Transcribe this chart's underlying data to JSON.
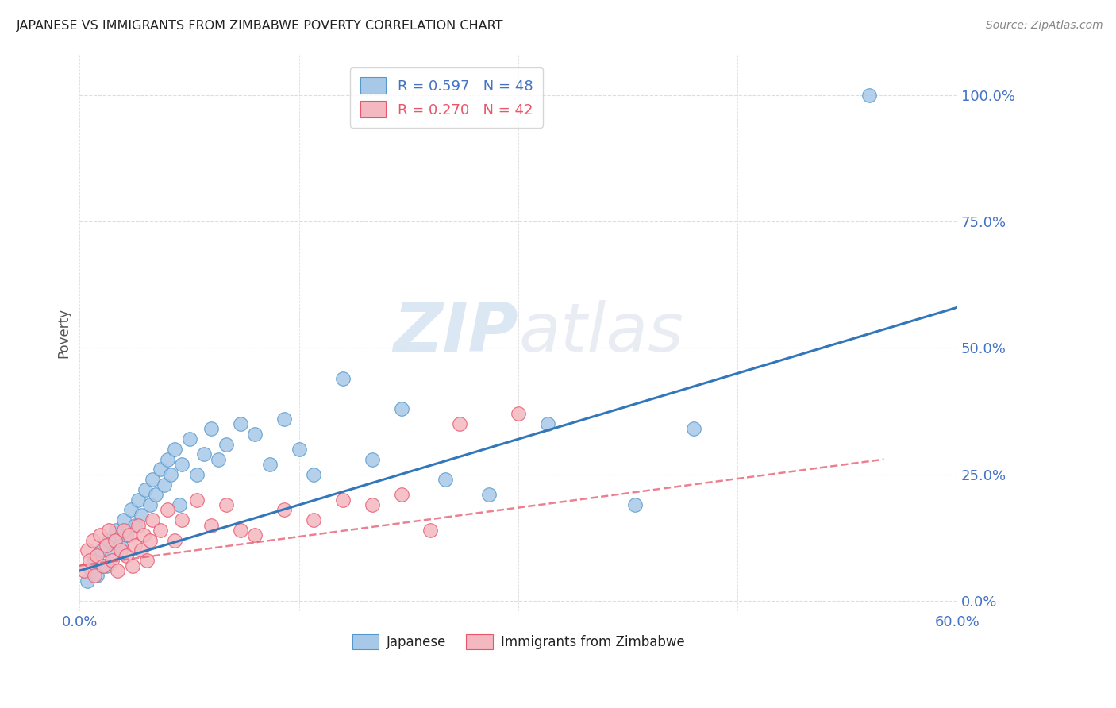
{
  "title": "JAPANESE VS IMMIGRANTS FROM ZIMBABWE POVERTY CORRELATION CHART",
  "source": "Source: ZipAtlas.com",
  "ylabel": "Poverty",
  "ytick_labels": [
    "0.0%",
    "25.0%",
    "50.0%",
    "75.0%",
    "100.0%"
  ],
  "ytick_values": [
    0.0,
    0.25,
    0.5,
    0.75,
    1.0
  ],
  "xlim": [
    0.0,
    0.6
  ],
  "ylim": [
    -0.02,
    1.08
  ],
  "legend_r1_color": "#4472c4",
  "legend_r2_color": "#e8566b",
  "japanese_color": "#a8c8e8",
  "japanese_edge_color": "#5599cc",
  "zimbabwe_color": "#f4b8c0",
  "zimbabwe_edge_color": "#e8566b",
  "japanese_line_color": "#3377bb",
  "zimbabwe_line_color": "#e8566b",
  "watermark_color": "#dde8f5",
  "grid_color": "#dddddd",
  "title_color": "#222222",
  "source_color": "#888888",
  "tick_label_color": "#4472c4",
  "ylabel_color": "#555555",
  "japanese_scatter_x": [
    0.005,
    0.008,
    0.01,
    0.012,
    0.015,
    0.018,
    0.02,
    0.022,
    0.025,
    0.028,
    0.03,
    0.032,
    0.035,
    0.038,
    0.04,
    0.042,
    0.045,
    0.048,
    0.05,
    0.052,
    0.055,
    0.058,
    0.06,
    0.062,
    0.065,
    0.068,
    0.07,
    0.075,
    0.08,
    0.085,
    0.09,
    0.095,
    0.1,
    0.11,
    0.12,
    0.13,
    0.14,
    0.15,
    0.16,
    0.18,
    0.2,
    0.22,
    0.25,
    0.28,
    0.32,
    0.38,
    0.42,
    0.54
  ],
  "japanese_scatter_y": [
    0.04,
    0.06,
    0.08,
    0.05,
    0.1,
    0.07,
    0.12,
    0.09,
    0.14,
    0.11,
    0.16,
    0.13,
    0.18,
    0.15,
    0.2,
    0.17,
    0.22,
    0.19,
    0.24,
    0.21,
    0.26,
    0.23,
    0.28,
    0.25,
    0.3,
    0.19,
    0.27,
    0.32,
    0.25,
    0.29,
    0.34,
    0.28,
    0.31,
    0.35,
    0.33,
    0.27,
    0.36,
    0.3,
    0.25,
    0.44,
    0.28,
    0.38,
    0.24,
    0.21,
    0.35,
    0.19,
    0.34,
    1.0
  ],
  "zimbabwe_scatter_x": [
    0.003,
    0.005,
    0.007,
    0.009,
    0.01,
    0.012,
    0.014,
    0.016,
    0.018,
    0.02,
    0.022,
    0.024,
    0.026,
    0.028,
    0.03,
    0.032,
    0.034,
    0.036,
    0.038,
    0.04,
    0.042,
    0.044,
    0.046,
    0.048,
    0.05,
    0.055,
    0.06,
    0.065,
    0.07,
    0.08,
    0.09,
    0.1,
    0.11,
    0.12,
    0.14,
    0.16,
    0.18,
    0.2,
    0.22,
    0.24,
    0.26,
    0.3
  ],
  "zimbabwe_scatter_y": [
    0.06,
    0.1,
    0.08,
    0.12,
    0.05,
    0.09,
    0.13,
    0.07,
    0.11,
    0.14,
    0.08,
    0.12,
    0.06,
    0.1,
    0.14,
    0.09,
    0.13,
    0.07,
    0.11,
    0.15,
    0.1,
    0.13,
    0.08,
    0.12,
    0.16,
    0.14,
    0.18,
    0.12,
    0.16,
    0.2,
    0.15,
    0.19,
    0.14,
    0.13,
    0.18,
    0.16,
    0.2,
    0.19,
    0.21,
    0.14,
    0.35,
    0.37
  ],
  "japanese_trend_x": [
    0.0,
    0.6
  ],
  "japanese_trend_y": [
    0.06,
    0.58
  ],
  "zimbabwe_trend_x": [
    0.0,
    0.55
  ],
  "zimbabwe_trend_y": [
    0.07,
    0.28
  ],
  "background_color": "#ffffff"
}
